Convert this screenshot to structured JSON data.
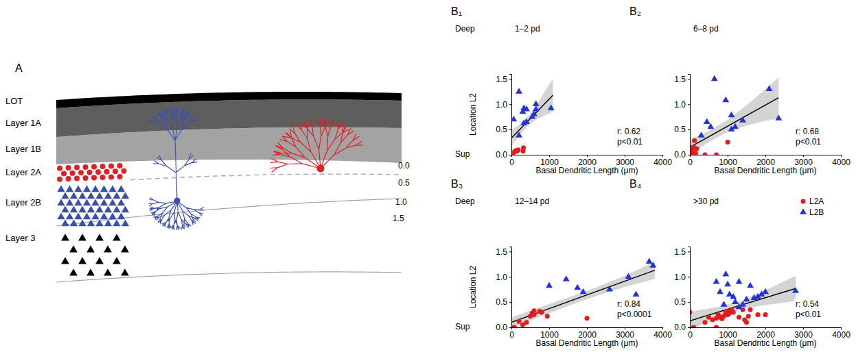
{
  "diagram": {
    "panel_label": "A",
    "layers": [
      "LOT",
      "Layer 1A",
      "Layer 1B",
      "Layer 2A",
      "Layer 2B",
      "Layer 3"
    ],
    "depth_labels": [
      "0.0",
      "0.5",
      "1.0",
      "1.5"
    ]
  },
  "chart_data": [
    {
      "type": "scatter",
      "panel_label": "B₁",
      "title": "1–2 pd",
      "y_label": "Location L2",
      "y_top_label": "Deep",
      "y_bottom_label": "Sup",
      "x_label": "Basal Dendritic Length (μm)",
      "xlim": [
        0,
        4000
      ],
      "xticks": [
        0,
        1000,
        2000,
        3000,
        4000
      ],
      "ylim": [
        0,
        1.6
      ],
      "yticks": [
        {
          "value": 0,
          "label": "0.0"
        },
        {
          "value": 0.5,
          "label": "0.5"
        },
        {
          "value": 1,
          "label": "1.0"
        },
        {
          "value": 1.5,
          "label": "1.5"
        }
      ],
      "series": [
        {
          "color": "#e41a1c",
          "marker": "circle",
          "x": [
            30,
            70,
            110,
            150,
            180,
            310,
            320
          ],
          "values": [
            0.02,
            0.05,
            0.08,
            0.07,
            0.1,
            0.07,
            0.14
          ]
        },
        {
          "color": "#2233dd",
          "marker": "triangle",
          "x": [
            60,
            200,
            200,
            300,
            330,
            330,
            400,
            400,
            550,
            600,
            650,
            650,
            1050
          ],
          "values": [
            0.7,
            1.25,
            0.38,
            0.85,
            0.92,
            0.62,
            0.65,
            0.9,
            0.75,
            0.8,
            0.9,
            1.0,
            0.92
          ]
        }
      ],
      "fit": {
        "x": [
          0,
          1100
        ],
        "values": [
          0.33,
          1.18
        ]
      },
      "ci_band": {
        "x": [
          0,
          200,
          400,
          600,
          800,
          1100
        ],
        "lower": [
          0.17,
          0.37,
          0.55,
          0.67,
          0.75,
          0.85
        ],
        "upper": [
          0.49,
          0.59,
          0.73,
          0.91,
          1.15,
          1.51
        ]
      },
      "annotations": [
        "r: 0.62",
        "p<0.01"
      ]
    },
    {
      "type": "scatter",
      "panel_label": "B₂",
      "title": "6–8 pd",
      "x_label": "Basal Dendritic Length (μm)",
      "xlim": [
        0,
        4000
      ],
      "xticks": [
        0,
        1000,
        2000,
        3000,
        4000
      ],
      "ylim": [
        0,
        1.6
      ],
      "yticks": [
        {
          "value": 0,
          "label": "0.0"
        },
        {
          "value": 0.5,
          "label": "0.5"
        },
        {
          "value": 1,
          "label": "1.0"
        },
        {
          "value": 1.5,
          "label": "1.5"
        }
      ],
      "series": [
        {
          "color": "#e41a1c",
          "marker": "circle",
          "x": [
            30,
            60,
            80,
            100,
            120,
            150,
            180,
            400,
            700,
            1000
          ],
          "values": [
            0.05,
            0.1,
            0.02,
            0.15,
            0.28,
            0.03,
            0.12,
            0.0,
            0.0,
            0.25
          ]
        },
        {
          "color": "#2233dd",
          "marker": "triangle",
          "x": [
            300,
            450,
            550,
            650,
            950,
            1100,
            1100,
            1200,
            1400,
            2100,
            2350
          ],
          "values": [
            0.38,
            0.65,
            0.55,
            1.5,
            1.08,
            0.78,
            0.5,
            0.55,
            0.68,
            1.3,
            0.72
          ]
        }
      ],
      "fit": {
        "x": [
          0,
          2350
        ],
        "values": [
          0.15,
          1.13
        ]
      },
      "ci_band": {
        "x": [
          0,
          500,
          1000,
          1500,
          2000,
          2350
        ],
        "lower": [
          0.0,
          0.25,
          0.45,
          0.58,
          0.67,
          0.72
        ],
        "upper": [
          0.3,
          0.47,
          0.69,
          0.98,
          1.3,
          1.53
        ]
      },
      "annotations": [
        "r: 0.68",
        "p<0.01"
      ]
    },
    {
      "type": "scatter",
      "panel_label": "B₃",
      "title": "12–14 pd",
      "y_label": "Location L2",
      "y_top_label": "Deep",
      "y_bottom_label": "Sup",
      "x_label": "Basal Dendritic Length (μm)",
      "xlim": [
        0,
        4000
      ],
      "xticks": [
        0,
        1000,
        2000,
        3000,
        4000
      ],
      "ylim": [
        0,
        1.6
      ],
      "yticks": [
        {
          "value": 0,
          "label": "0.0"
        },
        {
          "value": 0.5,
          "label": "0.5"
        },
        {
          "value": 1,
          "label": "1.0"
        },
        {
          "value": 1.5,
          "label": "1.5"
        }
      ],
      "series": [
        {
          "color": "#e41a1c",
          "marker": "circle",
          "x": [
            0,
            80,
            200,
            300,
            400,
            500,
            550,
            600,
            600,
            750,
            800,
            950,
            2000
          ],
          "values": [
            0,
            0,
            0.12,
            0.05,
            0.1,
            0.22,
            0.28,
            0.33,
            0.25,
            0.32,
            0.3,
            0.22,
            0.18
          ]
        },
        {
          "color": "#2233dd",
          "marker": "triangle",
          "x": [
            1000,
            1450,
            1750,
            1900,
            2600,
            3100,
            3300,
            3650,
            3750
          ],
          "values": [
            0.82,
            0.95,
            0.78,
            0.7,
            0.75,
            1.0,
            0.65,
            1.3,
            1.22
          ]
        }
      ],
      "fit": {
        "x": [
          0,
          3800
        ],
        "values": [
          0.1,
          1.13
        ]
      },
      "ci_band": {
        "x": [
          0,
          1000,
          2000,
          3000,
          3800
        ],
        "lower": [
          0.0,
          0.28,
          0.56,
          0.8,
          0.96
        ],
        "upper": [
          0.2,
          0.46,
          0.72,
          1.02,
          1.3
        ]
      },
      "annotations": [
        "r: 0.84",
        "p<0.0001"
      ]
    },
    {
      "type": "scatter",
      "panel_label": "B₄",
      "title": ">30 pd",
      "x_label": "Basal Dendritic Length (μm)",
      "xlim": [
        0,
        4000
      ],
      "xticks": [
        0,
        1000,
        2000,
        3000,
        4000
      ],
      "ylim": [
        0,
        1.6
      ],
      "yticks": [
        {
          "value": 0,
          "label": "0.0"
        },
        {
          "value": 0.5,
          "label": "0.5"
        },
        {
          "value": 1,
          "label": "1.0"
        },
        {
          "value": 1.5,
          "label": "1.5"
        }
      ],
      "legend": "top-right",
      "series": [
        {
          "name": "L2A",
          "color": "#e41a1c",
          "marker": "circle",
          "x": [
            0,
            100,
            400,
            500,
            600,
            700,
            700,
            750,
            800,
            850,
            900,
            950,
            1000,
            1000,
            1050,
            1100,
            1150,
            1300,
            1400,
            1450,
            1500,
            1550,
            1600,
            1800,
            2000
          ],
          "values": [
            0.3,
            0,
            0.1,
            0.2,
            0.15,
            0.18,
            0,
            0.25,
            0.2,
            0.17,
            0.22,
            0.3,
            0.25,
            0.32,
            0.28,
            0.35,
            0.3,
            0.2,
            0.35,
            0.15,
            0.1,
            0.22,
            0.35,
            0.25,
            0.25
          ]
        },
        {
          "name": "L2B",
          "color": "#2233dd",
          "marker": "triangle",
          "x": [
            700,
            800,
            900,
            950,
            1000,
            1050,
            1150,
            1200,
            1300,
            1300,
            1400,
            1500,
            1600,
            1700,
            1800,
            1900,
            2000,
            2800
          ],
          "values": [
            0.9,
            0.7,
            0.45,
            1.05,
            0.85,
            0.65,
            0.6,
            0.5,
            0.9,
            0.4,
            0.45,
            0.55,
            0.82,
            0.58,
            0.6,
            0.65,
            0.7,
            0.72
          ]
        }
      ],
      "fit": {
        "x": [
          0,
          2800
        ],
        "values": [
          0.13,
          0.77
        ]
      },
      "ci_band": {
        "x": [
          0,
          700,
          1400,
          2100,
          2800
        ],
        "lower": [
          -0.05,
          0.18,
          0.37,
          0.45,
          0.52
        ],
        "upper": [
          0.31,
          0.4,
          0.53,
          0.77,
          1.02
        ]
      },
      "annotations": [
        "r: 0.54",
        "p<0.01"
      ]
    }
  ]
}
